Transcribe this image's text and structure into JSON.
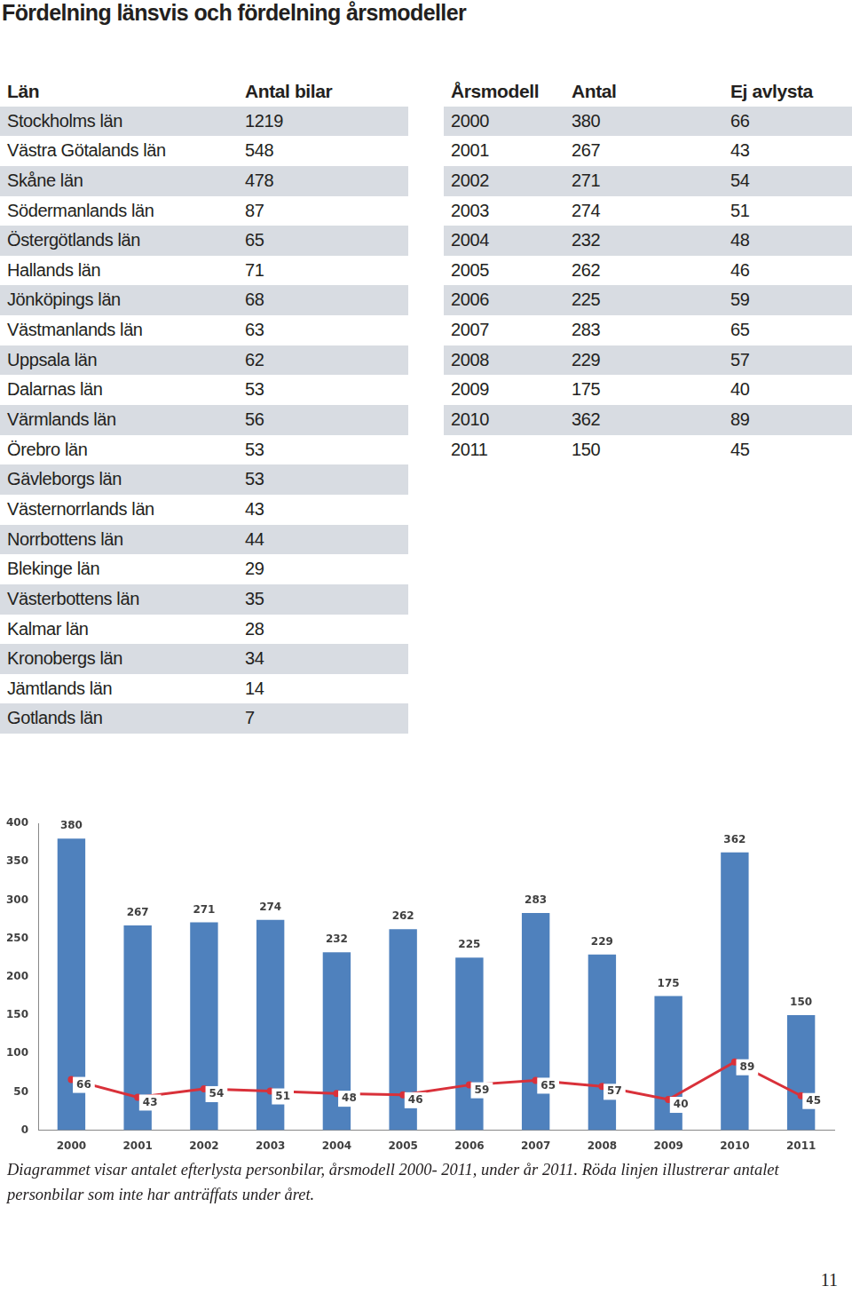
{
  "title": "Fördelning länsvis och fördelning årsmodeller",
  "county_table": {
    "columns": [
      "Län",
      "Antal bilar"
    ],
    "rows": [
      [
        "Stockholms län",
        1219
      ],
      [
        "Västra Götalands län",
        548
      ],
      [
        "Skåne län",
        478
      ],
      [
        "Södermanlands län",
        87
      ],
      [
        "Östergötlands län",
        65
      ],
      [
        "Hallands län",
        71
      ],
      [
        "Jönköpings län",
        68
      ],
      [
        "Västmanlands län",
        63
      ],
      [
        "Uppsala län",
        62
      ],
      [
        "Dalarnas län",
        53
      ],
      [
        "Värmlands län",
        56
      ],
      [
        "Örebro län",
        53
      ],
      [
        "Gävleborgs län",
        53
      ],
      [
        "Västernorrlands län",
        43
      ],
      [
        "Norrbottens län",
        44
      ],
      [
        "Blekinge län",
        29
      ],
      [
        "Västerbottens län",
        35
      ],
      [
        "Kalmar län",
        28
      ],
      [
        "Kronobergs län",
        34
      ],
      [
        "Jämtlands län",
        14
      ],
      [
        "Gotlands län",
        7
      ]
    ]
  },
  "model_table": {
    "columns": [
      "Årsmodell",
      "Antal",
      "Ej avlysta"
    ],
    "rows": [
      [
        2000,
        380,
        66
      ],
      [
        2001,
        267,
        43
      ],
      [
        2002,
        271,
        54
      ],
      [
        2003,
        274,
        51
      ],
      [
        2004,
        232,
        48
      ],
      [
        2005,
        262,
        46
      ],
      [
        2006,
        225,
        59
      ],
      [
        2007,
        283,
        65
      ],
      [
        2008,
        229,
        57
      ],
      [
        2009,
        175,
        40
      ],
      [
        2010,
        362,
        89
      ],
      [
        2011,
        150,
        45
      ]
    ]
  },
  "chart_data": {
    "type": "bar",
    "categories": [
      "2000",
      "2001",
      "2002",
      "2003",
      "2004",
      "2005",
      "2006",
      "2007",
      "2008",
      "2009",
      "2010",
      "2011"
    ],
    "series": [
      {
        "name": "Antal",
        "type": "bar",
        "color": "#4f81bd",
        "values": [
          380,
          267,
          271,
          274,
          232,
          262,
          225,
          283,
          229,
          175,
          362,
          150
        ]
      },
      {
        "name": "Ej avlysta",
        "type": "line",
        "color": "#d9313a",
        "values": [
          66,
          43,
          54,
          51,
          48,
          46,
          59,
          65,
          57,
          40,
          89,
          45
        ]
      }
    ],
    "ylim": [
      0,
      400
    ],
    "yticks": [
      0,
      50,
      100,
      150,
      200,
      250,
      300,
      350,
      400
    ],
    "grid": false,
    "data_labels": true
  },
  "caption": "Diagrammet visar antalet efterlysta personbilar, årsmodell 2000- 2011, under år 2011. Röda linjen illustrerar antalet personbilar som inte har anträffats under året.",
  "page_number": 11
}
